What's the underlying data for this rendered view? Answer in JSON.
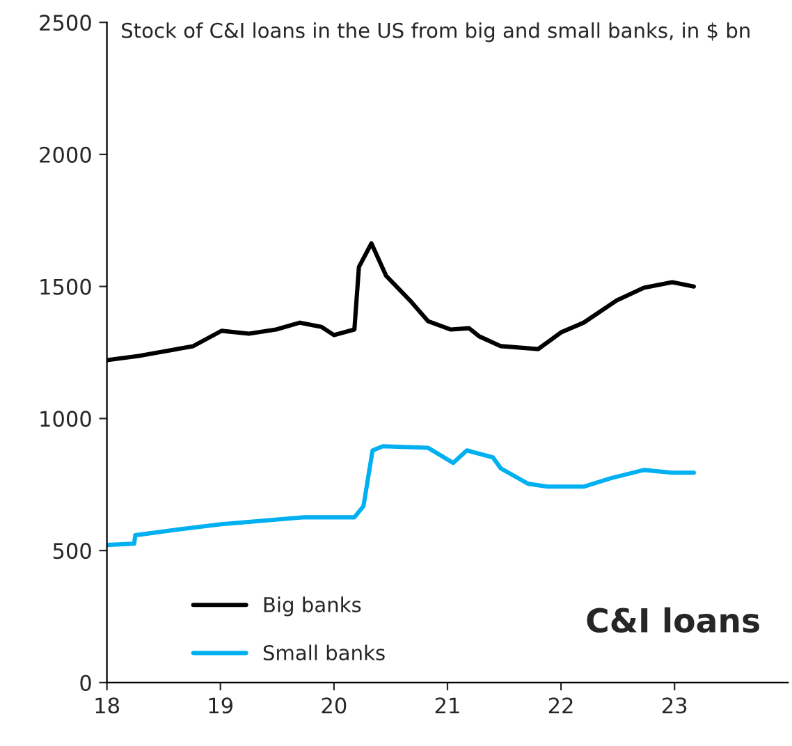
{
  "chart_data": {
    "type": "line",
    "title": "Stock of C&I loans in the US from big and small banks, in $ bn",
    "annotations": [
      "C&I loans"
    ],
    "xlim": [
      18,
      24
    ],
    "xticks": [
      18,
      19,
      20,
      21,
      22,
      23
    ],
    "ylim": [
      0,
      2500
    ],
    "yticks": [
      0,
      500,
      1000,
      1500,
      2000,
      2500
    ],
    "grid": false,
    "legend": "bottom left",
    "marker": "none",
    "line_style": "solid",
    "series": [
      {
        "name": "Big banks",
        "color": "#000000",
        "x": [
          18.0,
          18.28,
          18.76,
          19.01,
          19.25,
          19.49,
          19.7,
          19.89,
          20.0,
          20.18,
          20.22,
          20.33,
          20.46,
          20.67,
          20.83,
          21.03,
          21.19,
          21.28,
          21.47,
          21.8,
          22.0,
          22.2,
          22.49,
          22.73,
          22.98,
          23.17
        ],
        "values": [
          1221,
          1237,
          1274,
          1332,
          1321,
          1337,
          1363,
          1347,
          1316,
          1337,
          1574,
          1663,
          1540,
          1447,
          1368,
          1337,
          1342,
          1311,
          1274,
          1263,
          1326,
          1363,
          1447,
          1495,
          1516,
          1500
        ]
      },
      {
        "name": "Small banks",
        "color": "#00b0f0",
        "x": [
          18.0,
          18.24,
          18.25,
          18.61,
          19.01,
          19.74,
          20.18,
          20.26,
          20.34,
          20.43,
          20.83,
          21.05,
          21.17,
          21.4,
          21.47,
          21.71,
          21.88,
          22.2,
          22.44,
          22.73,
          22.98,
          23.17
        ],
        "values": [
          521,
          526,
          558,
          579,
          600,
          626,
          626,
          668,
          879,
          895,
          889,
          832,
          879,
          853,
          811,
          753,
          742,
          742,
          774,
          805,
          795,
          795
        ]
      }
    ]
  }
}
